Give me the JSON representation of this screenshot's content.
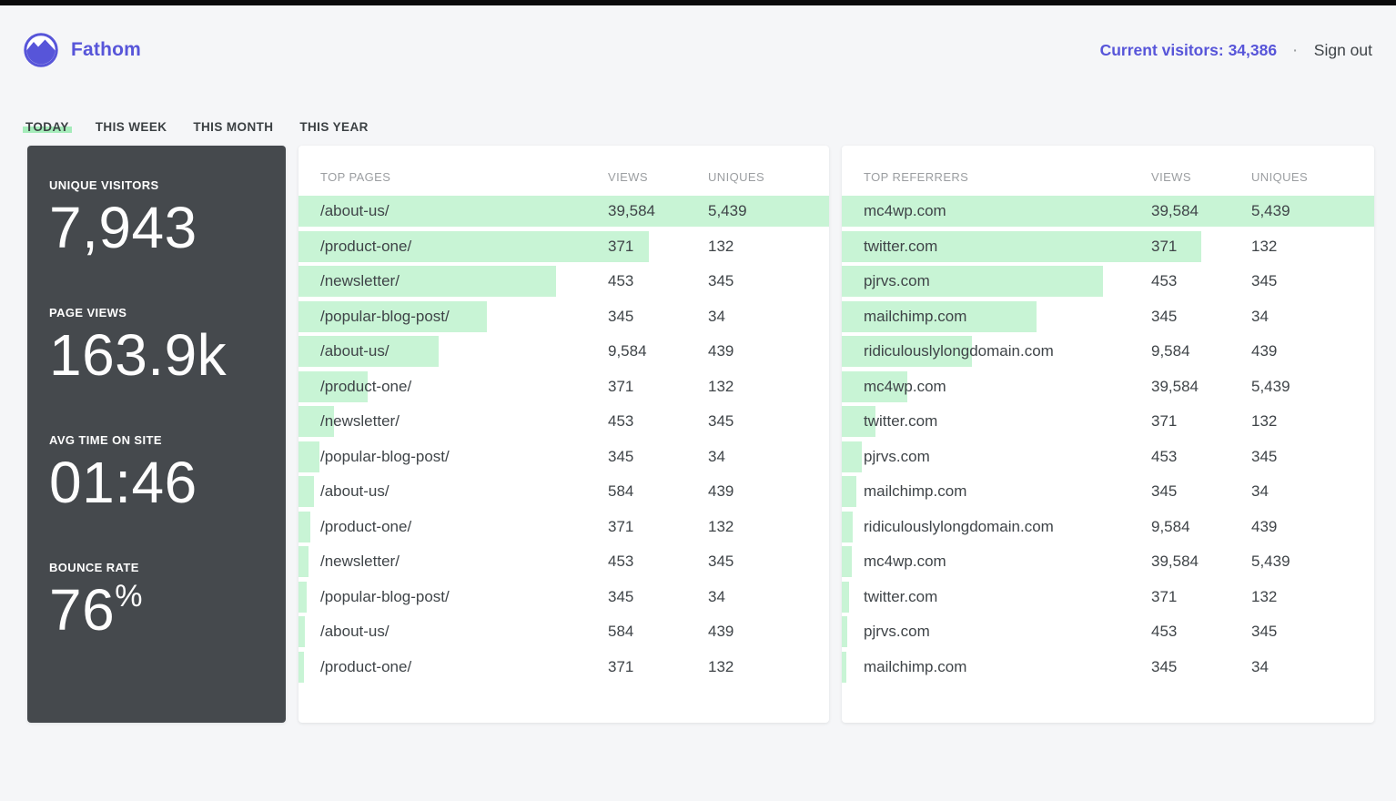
{
  "header": {
    "brand": "Fathom",
    "current_visitors": "Current visitors: 34,386",
    "separator": "·",
    "sign_out": "Sign out"
  },
  "tabs": [
    {
      "label": "TODAY",
      "active": true
    },
    {
      "label": "THIS WEEK",
      "active": false
    },
    {
      "label": "THIS MONTH",
      "active": false
    },
    {
      "label": "THIS YEAR",
      "active": false
    }
  ],
  "stats": [
    {
      "label": "UNIQUE VISITORS",
      "value": "7,943",
      "suffix": ""
    },
    {
      "label": "PAGE VIEWS",
      "value": "163.9k",
      "suffix": ""
    },
    {
      "label": "AVG TIME ON SITE",
      "value": "01:46",
      "suffix": ""
    },
    {
      "label": "BOUNCE RATE",
      "value": "76",
      "suffix": "%"
    }
  ],
  "top_pages": {
    "title": "TOP PAGES",
    "views_header": "VIEWS",
    "uniques_header": "UNIQUES",
    "rows": [
      {
        "name": "/about-us/",
        "views": "39,584",
        "uniques": "5,439",
        "bar_pct": 100
      },
      {
        "name": "/product-one/",
        "views": "371",
        "uniques": "132",
        "bar_pct": 66
      },
      {
        "name": "/newsletter/",
        "views": "453",
        "uniques": "345",
        "bar_pct": 48.5
      },
      {
        "name": "/popular-blog-post/",
        "views": "345",
        "uniques": "34",
        "bar_pct": 35.5
      },
      {
        "name": "/about-us/",
        "views": "9,584",
        "uniques": "439",
        "bar_pct": 26.5
      },
      {
        "name": "/product-one/",
        "views": "371",
        "uniques": "132",
        "bar_pct": 13
      },
      {
        "name": "/newsletter/",
        "views": "453",
        "uniques": "345",
        "bar_pct": 6.7
      },
      {
        "name": "/popular-blog-post/",
        "views": "345",
        "uniques": "34",
        "bar_pct": 3.9
      },
      {
        "name": "/about-us/",
        "views": "584",
        "uniques": "439",
        "bar_pct": 2.9
      },
      {
        "name": "/product-one/",
        "views": "371",
        "uniques": "132",
        "bar_pct": 2.2
      },
      {
        "name": "/newsletter/",
        "views": "453",
        "uniques": "345",
        "bar_pct": 1.9
      },
      {
        "name": "/popular-blog-post/",
        "views": "345",
        "uniques": "34",
        "bar_pct": 1.5
      },
      {
        "name": "/about-us/",
        "views": "584",
        "uniques": "439",
        "bar_pct": 1.2
      },
      {
        "name": "/product-one/",
        "views": "371",
        "uniques": "132",
        "bar_pct": 1.0
      }
    ]
  },
  "top_referrers": {
    "title": "TOP REFERRERS",
    "views_header": "VIEWS",
    "uniques_header": "UNIQUES",
    "rows": [
      {
        "name": "mc4wp.com",
        "views": "39,584",
        "uniques": "5,439",
        "bar_pct": 100
      },
      {
        "name": "twitter.com",
        "views": "371",
        "uniques": "132",
        "bar_pct": 67.5
      },
      {
        "name": "pjrvs.com",
        "views": "453",
        "uniques": "345",
        "bar_pct": 49
      },
      {
        "name": "mailchimp.com",
        "views": "345",
        "uniques": "34",
        "bar_pct": 36.5
      },
      {
        "name": "ridiculouslylongdomain.com",
        "views": "9,584",
        "uniques": "439",
        "bar_pct": 24.5
      },
      {
        "name": "mc4wp.com",
        "views": "39,584",
        "uniques": "5,439",
        "bar_pct": 12.3
      },
      {
        "name": "twitter.com",
        "views": "371",
        "uniques": "132",
        "bar_pct": 6.3
      },
      {
        "name": "pjrvs.com",
        "views": "453",
        "uniques": "345",
        "bar_pct": 3.7
      },
      {
        "name": "mailchimp.com",
        "views": "345",
        "uniques": "34",
        "bar_pct": 2.7
      },
      {
        "name": "ridiculouslylongdomain.com",
        "views": "9,584",
        "uniques": "439",
        "bar_pct": 2.1
      },
      {
        "name": "mc4wp.com",
        "views": "39,584",
        "uniques": "5,439",
        "bar_pct": 1.8
      },
      {
        "name": "twitter.com",
        "views": "371",
        "uniques": "132",
        "bar_pct": 1.4
      },
      {
        "name": "pjrvs.com",
        "views": "453",
        "uniques": "345",
        "bar_pct": 1.1
      },
      {
        "name": "mailchimp.com",
        "views": "345",
        "uniques": "34",
        "bar_pct": 0.9
      }
    ]
  },
  "colors": {
    "accent_indigo": "#5755d9",
    "bar_green": "#c8f4d5",
    "tab_highlight_green": "#a5ecba",
    "stats_card_bg": "#45494d",
    "page_bg": "#f5f6f8",
    "muted_text": "#9b9ea1",
    "body_text": "#3f4448"
  }
}
